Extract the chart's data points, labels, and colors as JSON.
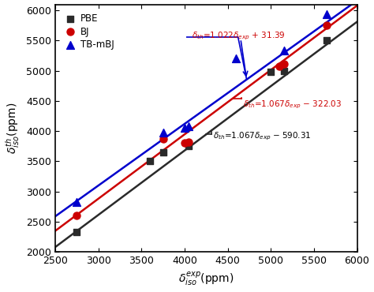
{
  "xlabel": "$\\delta_{iso}^{exp}$(ppm)",
  "ylabel": "$\\delta_{iso}^{th}$(ppm)",
  "xlim": [
    2500,
    6000
  ],
  "ylim": [
    2000,
    6100
  ],
  "xticks": [
    2500,
    3000,
    3500,
    4000,
    4500,
    5000,
    5500,
    6000
  ],
  "yticks": [
    2000,
    2500,
    3000,
    3500,
    4000,
    4500,
    5000,
    5500,
    6000
  ],
  "PBE_x": [
    2750,
    3600,
    3750,
    4050,
    5000,
    5150,
    5650
  ],
  "PBE_y": [
    2330,
    3500,
    3650,
    3750,
    4980,
    5000,
    5500
  ],
  "BJ_x": [
    2750,
    3750,
    4000,
    4050,
    5100,
    5150,
    5650
  ],
  "BJ_y": [
    2600,
    3870,
    3800,
    3820,
    5080,
    5110,
    5750
  ],
  "TBmBJ_x": [
    2750,
    3750,
    4000,
    4050,
    4600,
    5150,
    5650
  ],
  "TBmBJ_y": [
    2820,
    3980,
    4050,
    4080,
    5200,
    5340,
    5940
  ],
  "PBE_color": "#2a2a2a",
  "BJ_color": "#cc0000",
  "TBmBJ_color": "#0000cc",
  "PBE_slope": 1.067,
  "PBE_intercept": -590.31,
  "BJ_slope": 1.067,
  "BJ_intercept": -322.03,
  "TBmBJ_slope": 1.022,
  "TBmBJ_intercept": 31.39,
  "annot_TBmBJ": "$\\delta_{th}$=1.022$\\delta_{exp}$ + 31.39",
  "annot_BJ": "$\\delta_{th}$=1.067$\\delta_{exp}$ − 322.03",
  "annot_PBE": "$\\delta_{th}$=1.067$\\delta_{exp}$ − 590.31",
  "bg_color": "#ffffff",
  "figsize": [
    4.74,
    3.7
  ],
  "dpi": 100
}
